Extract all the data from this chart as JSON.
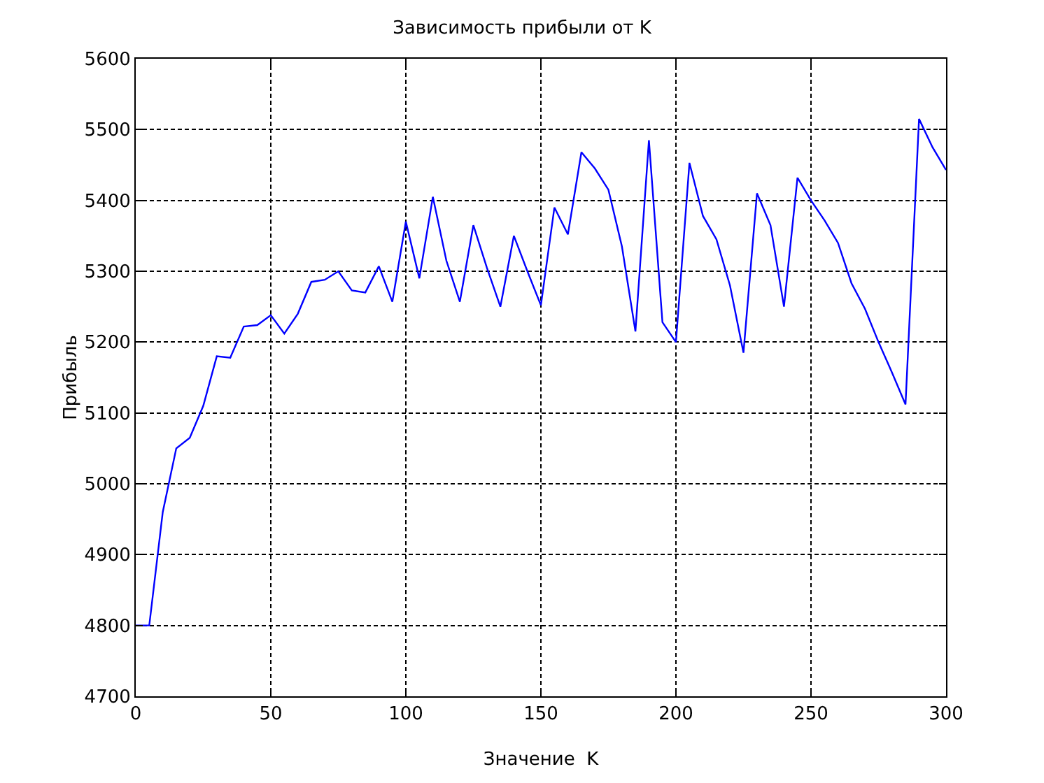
{
  "chart_data": {
    "type": "line",
    "title": "Зависимость прибыли от K",
    "xlabel": "Значение  K",
    "ylabel": "Прибыль",
    "x": [
      0,
      5,
      10,
      15,
      20,
      25,
      30,
      35,
      40,
      45,
      50,
      55,
      60,
      65,
      70,
      75,
      80,
      85,
      90,
      95,
      100,
      105,
      110,
      115,
      120,
      125,
      130,
      135,
      140,
      145,
      150,
      155,
      160,
      165,
      170,
      175,
      180,
      185,
      190,
      195,
      200,
      205,
      210,
      215,
      220,
      225,
      230,
      235,
      240,
      245,
      250,
      255,
      260,
      265,
      270,
      275,
      280,
      285,
      290,
      295,
      300
    ],
    "series": [
      {
        "color": "#0000ff",
        "values": [
          4800,
          4800,
          4960,
          5050,
          5065,
          5110,
          5180,
          5178,
          5222,
          5224,
          5238,
          5212,
          5240,
          5285,
          5288,
          5300,
          5273,
          5270,
          5307,
          5257,
          5370,
          5290,
          5405,
          5315,
          5257,
          5365,
          5305,
          5250,
          5350,
          5300,
          5252,
          5390,
          5352,
          5468,
          5445,
          5415,
          5335,
          5215,
          5485,
          5228,
          5200,
          5453,
          5378,
          5345,
          5280,
          5185,
          5410,
          5365,
          5250,
          5432,
          5400,
          5372,
          5340,
          5283,
          5247,
          5200,
          5157,
          5112,
          5515,
          5475,
          5443
        ]
      }
    ],
    "xlim": [
      0,
      300
    ],
    "xticks": [
      0,
      50,
      100,
      150,
      200,
      250,
      300
    ],
    "ylim": [
      4700,
      5600
    ],
    "yticks": [
      4700,
      4800,
      4900,
      5000,
      5100,
      5200,
      5300,
      5400,
      5500,
      5600
    ],
    "grid": true,
    "marker": "none",
    "line_style": "solid"
  }
}
